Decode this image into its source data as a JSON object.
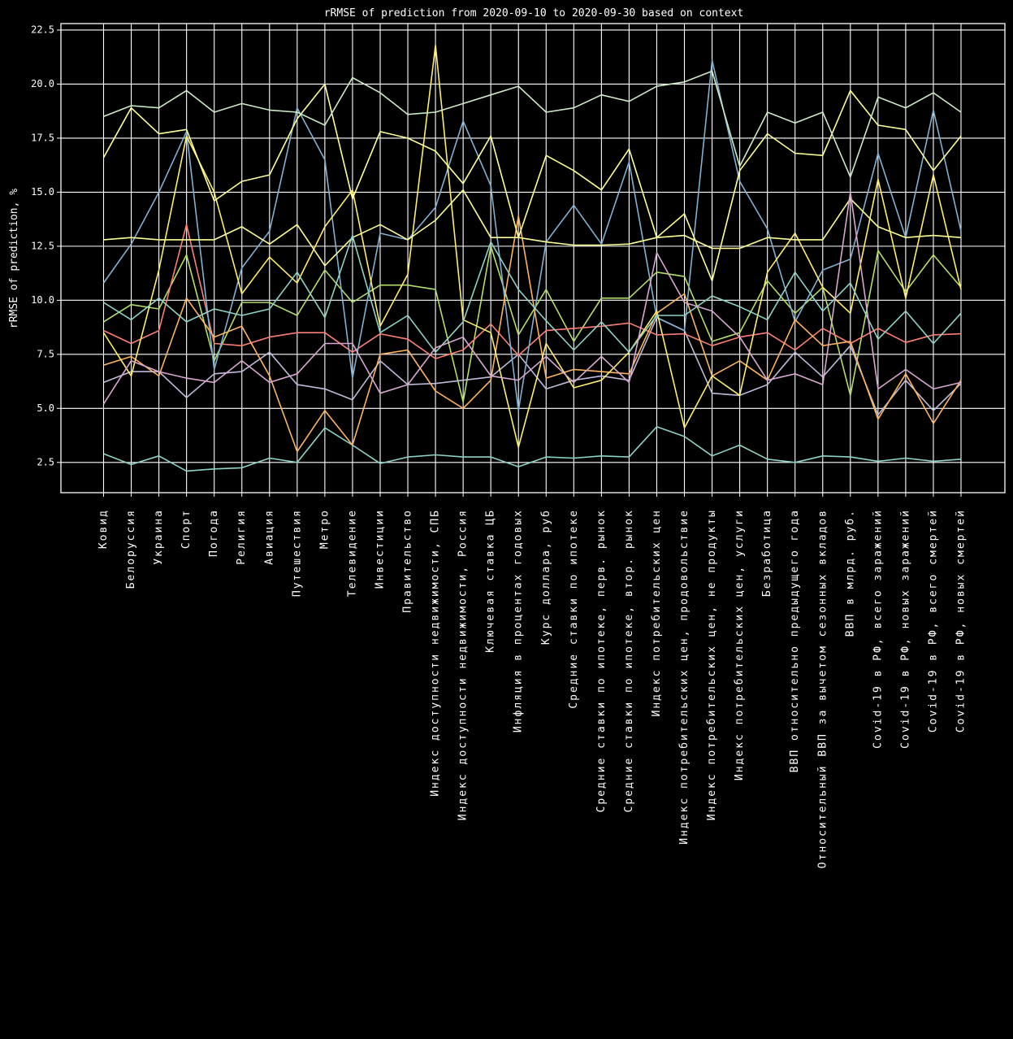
{
  "chart_data": {
    "type": "line",
    "title": "rRMSE of prediction from 2020-09-10 to 2020-09-30 based on context",
    "xlabel": "",
    "ylabel": "rRMSE of prediction, %",
    "ylim": [
      1.1,
      22.8
    ],
    "yticks": [
      "2.5",
      "5.0",
      "7.5",
      "10.0",
      "12.5",
      "15.0",
      "17.5",
      "20.0",
      "22.5"
    ],
    "grid": true,
    "legend": "none",
    "background": "#000000",
    "categories": [
      "Ковид",
      "Белоруссия",
      "Украина",
      "Спорт",
      "Погода",
      "Религия",
      "Авиация",
      "Путешествия",
      "Метро",
      "Телевидение",
      "Инвестиции",
      "Правительство",
      "Индекс доступности недвижимости, СПБ",
      "Индекс доступности недвижимости, Россия",
      "Ключевая ставка ЦБ",
      "Инфляция в процентах годовых",
      "Курс доллара, руб",
      "Средние ставки по ипотеке",
      "Средние ставки по ипотеке, перв. рынок",
      "Средние ставки по ипотеке, втор. рынок",
      "Индекс потребительских цен",
      "Индекс потребительских цен, продовольствие",
      "Индекс потребительских цен, не продукты",
      "Индекс потребительских цен, услуги",
      "Безработица",
      "ВВП относительно предыдущего года",
      "Относительный ВВП за вычетом сезонных вкладов",
      "ВВП в млрд. руб.",
      "Covid-19 в РФ, всего заражений",
      "Covid-19 в РФ, новых заражений",
      "Covid-19 в РФ, всего смертей",
      "Covid-19 в РФ, новых смертей"
    ],
    "series": [
      {
        "color": "#8dd3c7",
        "values": [
          2.9,
          2.4,
          2.8,
          2.1,
          2.2,
          2.25,
          2.7,
          2.5,
          4.1,
          3.3,
          2.45,
          2.75,
          2.85,
          2.75,
          2.75,
          2.3,
          2.75,
          2.7,
          2.8,
          2.75,
          4.15,
          3.7,
          2.8,
          3.3,
          2.65,
          2.5,
          2.8,
          2.75,
          2.55,
          2.7,
          2.55,
          2.65
        ]
      },
      {
        "color": "#b3de69",
        "values": [
          9.0,
          9.8,
          9.6,
          12.1,
          7.2,
          9.9,
          9.9,
          9.3,
          11.4,
          9.9,
          10.7,
          10.7,
          10.5,
          5.3,
          12.5,
          8.4,
          10.5,
          8.1,
          10.1,
          10.1,
          11.3,
          11.1,
          8.1,
          8.5,
          10.9,
          9.4,
          10.6,
          5.6,
          12.3,
          10.4,
          12.1,
          10.6
        ]
      },
      {
        "color": "#bebada",
        "values": [
          6.2,
          6.7,
          6.7,
          5.5,
          6.6,
          6.7,
          7.6,
          6.1,
          5.9,
          5.4,
          7.2,
          6.1,
          6.15,
          6.3,
          6.45,
          7.5,
          5.9,
          6.3,
          6.5,
          6.3,
          9.2,
          8.6,
          5.7,
          5.6,
          6.1,
          7.6,
          6.45,
          7.9,
          4.7,
          6.3,
          4.9,
          6.15
        ]
      },
      {
        "color": "#fb8072",
        "values": [
          8.6,
          8.0,
          8.6,
          13.5,
          8.0,
          7.9,
          8.3,
          8.5,
          8.5,
          7.6,
          8.45,
          8.2,
          7.3,
          7.7,
          8.9,
          7.45,
          8.6,
          8.7,
          8.8,
          8.95,
          8.4,
          8.45,
          7.9,
          8.3,
          8.5,
          7.7,
          8.7,
          8.0,
          8.7,
          8.05,
          8.4,
          8.45
        ]
      },
      {
        "color": "#80b1d3",
        "values": [
          10.8,
          12.6,
          15.0,
          17.8,
          6.8,
          11.5,
          13.2,
          18.9,
          16.5,
          6.4,
          13.1,
          12.8,
          14.3,
          18.3,
          15.3,
          4.9,
          12.7,
          14.4,
          12.6,
          16.4,
          9.2,
          8.6,
          21.1,
          15.5,
          13.3,
          9.0,
          11.4,
          11.9,
          16.8,
          12.9,
          18.8,
          13.2
        ]
      },
      {
        "color": "#fdb462",
        "values": [
          7.0,
          7.4,
          6.5,
          10.1,
          8.3,
          8.8,
          6.5,
          3.0,
          4.9,
          3.3,
          7.5,
          7.7,
          5.8,
          5.0,
          6.3,
          13.9,
          6.4,
          6.8,
          6.7,
          6.6,
          9.4,
          10.3,
          6.5,
          7.2,
          6.3,
          9.1,
          7.9,
          8.1,
          4.5,
          6.6,
          4.3,
          6.3
        ]
      },
      {
        "color": "#ffed6f",
        "values": [
          8.5,
          6.5,
          11.4,
          17.6,
          15.0,
          10.3,
          12.0,
          10.8,
          13.4,
          15.1,
          8.8,
          11.2,
          21.8,
          9.1,
          8.5,
          3.2,
          8.0,
          5.95,
          6.3,
          7.6,
          9.5,
          4.1,
          6.5,
          5.6,
          11.3,
          13.1,
          10.6,
          9.4,
          15.6,
          10.1,
          15.8,
          10.5
        ]
      },
      {
        "color": "#ffff99",
        "values": [
          16.6,
          18.9,
          17.7,
          17.9,
          14.6,
          15.5,
          15.8,
          18.4,
          20.0,
          14.7,
          17.8,
          17.5,
          16.9,
          15.4,
          17.6,
          12.9,
          16.7,
          16.0,
          15.1,
          17.0,
          12.9,
          14.0,
          10.9,
          16.0,
          17.7,
          16.8,
          16.7,
          19.7,
          18.1,
          17.9,
          16.0,
          17.6
        ]
      },
      {
        "color": "#fdfd96",
        "values": [
          12.8,
          12.9,
          12.8,
          12.8,
          12.8,
          13.4,
          12.6,
          13.5,
          11.6,
          12.9,
          13.5,
          12.8,
          13.7,
          15.1,
          12.9,
          12.9,
          12.7,
          12.55,
          12.55,
          12.6,
          12.9,
          13.0,
          12.4,
          12.4,
          12.9,
          12.8,
          12.8,
          14.7,
          13.4,
          12.9,
          13.0,
          12.9
        ]
      },
      {
        "color": "#ccebc5",
        "values": [
          18.5,
          19.0,
          18.9,
          19.7,
          18.7,
          19.1,
          18.8,
          18.7,
          18.1,
          20.3,
          19.6,
          18.6,
          18.7,
          19.1,
          19.5,
          19.9,
          18.7,
          18.9,
          19.5,
          19.2,
          19.9,
          20.1,
          20.6,
          16.2,
          18.7,
          18.2,
          18.7,
          15.7,
          19.4,
          18.9,
          19.6,
          18.7
        ]
      },
      {
        "color": "#8dd3c7",
        "values": [
          9.9,
          9.1,
          10.1,
          9.0,
          9.6,
          9.3,
          9.6,
          11.3,
          9.2,
          13.0,
          8.5,
          9.3,
          7.6,
          9.0,
          12.7,
          10.5,
          9.05,
          7.7,
          9.0,
          7.6,
          9.3,
          9.3,
          10.2,
          9.7,
          9.1,
          11.3,
          9.5,
          10.8,
          8.2,
          9.5,
          8.0,
          9.4
        ]
      },
      {
        "color": "#d9a6d0",
        "values": [
          5.2,
          7.2,
          6.7,
          6.4,
          6.2,
          7.2,
          6.2,
          6.6,
          8.0,
          8.0,
          5.7,
          6.1,
          7.8,
          8.3,
          6.5,
          6.3,
          7.4,
          6.2,
          7.4,
          6.2,
          12.2,
          9.9,
          9.5,
          8.3,
          6.3,
          6.6,
          6.1,
          15.0,
          5.9,
          6.8,
          5.9,
          6.2
        ]
      }
    ]
  }
}
